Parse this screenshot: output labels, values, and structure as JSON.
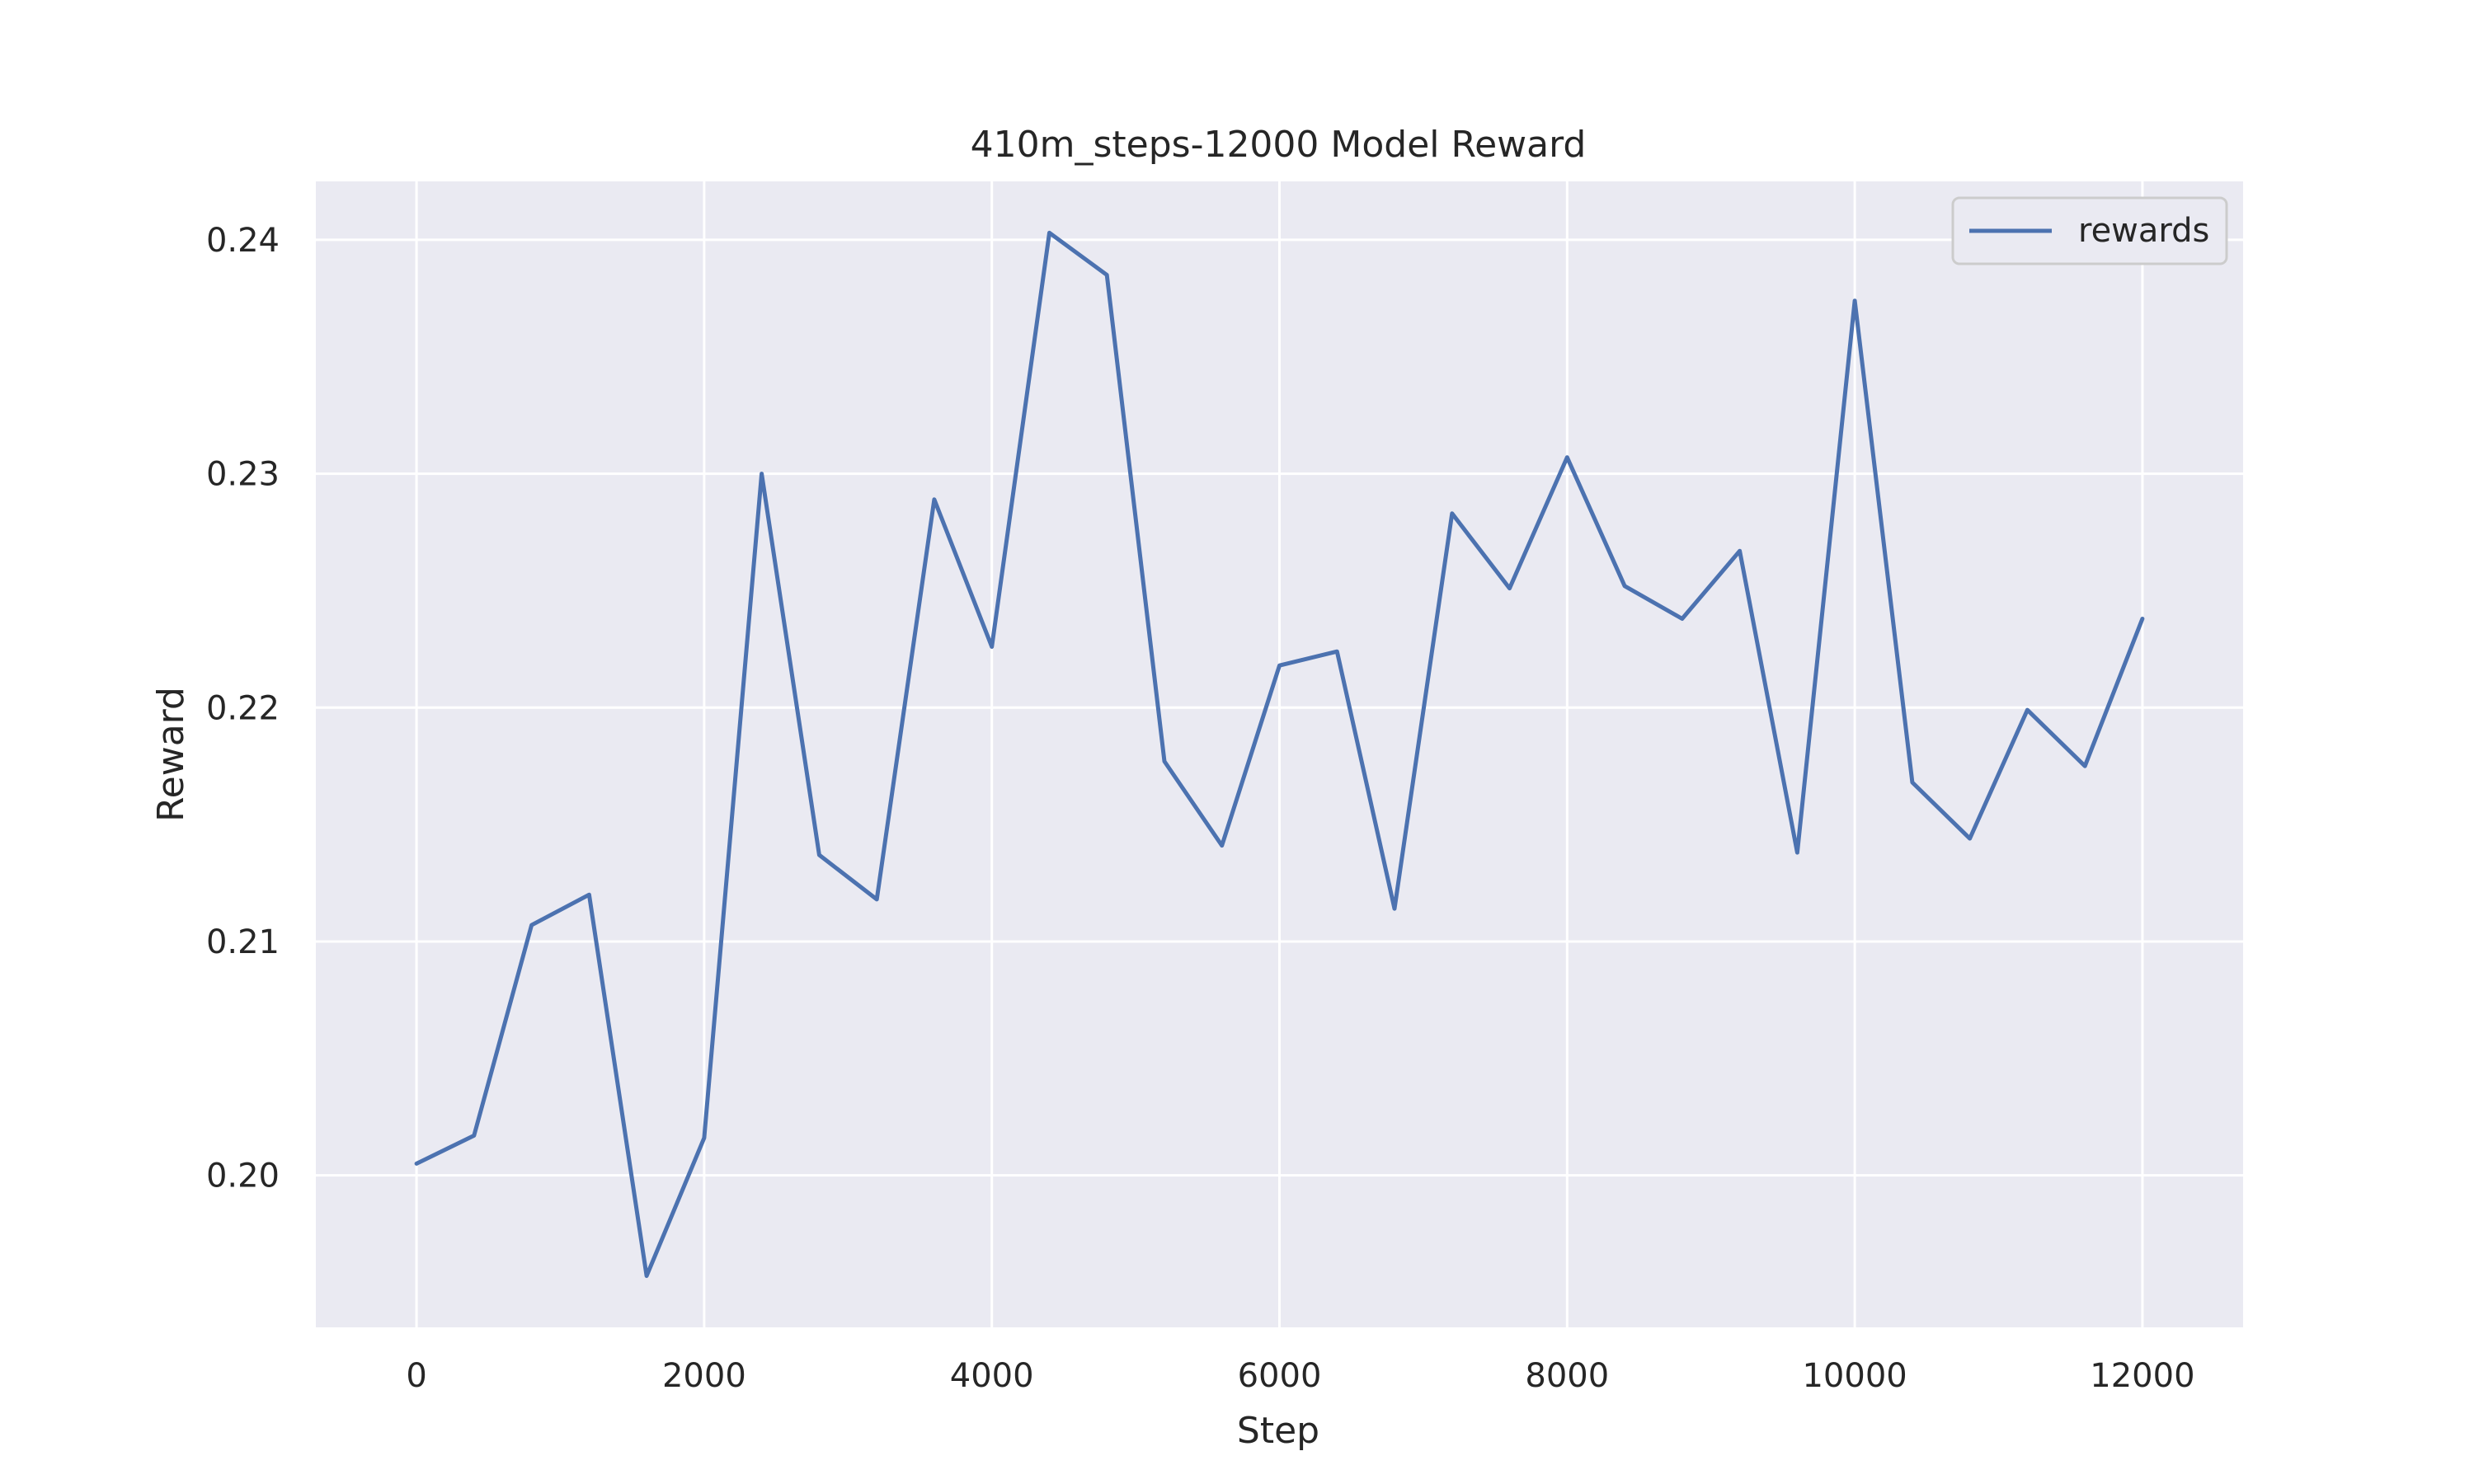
{
  "chart_data": {
    "type": "line",
    "title": "410m_steps-12000 Model Reward",
    "xlabel": "Step",
    "ylabel": "Reward",
    "xlim": [
      -700,
      12700
    ],
    "ylim": [
      0.1935,
      0.2425
    ],
    "xticks": [
      0,
      2000,
      4000,
      6000,
      8000,
      10000,
      12000
    ],
    "yticks": [
      0.2,
      0.21,
      0.22,
      0.23,
      0.24
    ],
    "ytick_labels": [
      "0.20",
      "0.21",
      "0.22",
      "0.23",
      "0.24"
    ],
    "grid": true,
    "legend": "top-right",
    "series": [
      {
        "name": "rewards",
        "color": "#4c72b0",
        "x": [
          0,
          400,
          800,
          1200,
          1600,
          2000,
          2400,
          2800,
          3200,
          3600,
          4000,
          4400,
          4800,
          5200,
          5600,
          6000,
          6400,
          6800,
          7200,
          7600,
          8000,
          8400,
          8800,
          9200,
          9600,
          10000,
          10400,
          10800,
          11200,
          11600,
          12000
        ],
        "y": [
          0.2005,
          0.2017,
          0.2107,
          0.212,
          0.1957,
          0.2016,
          0.23,
          0.2137,
          0.2118,
          0.2289,
          0.2226,
          0.2403,
          0.2385,
          0.2177,
          0.2141,
          0.2218,
          0.2224,
          0.2114,
          0.2283,
          0.2251,
          0.2307,
          0.2252,
          0.2238,
          0.2267,
          0.2138,
          0.2374,
          0.2168,
          0.2144,
          0.2199,
          0.2175,
          0.2238
        ]
      }
    ]
  }
}
